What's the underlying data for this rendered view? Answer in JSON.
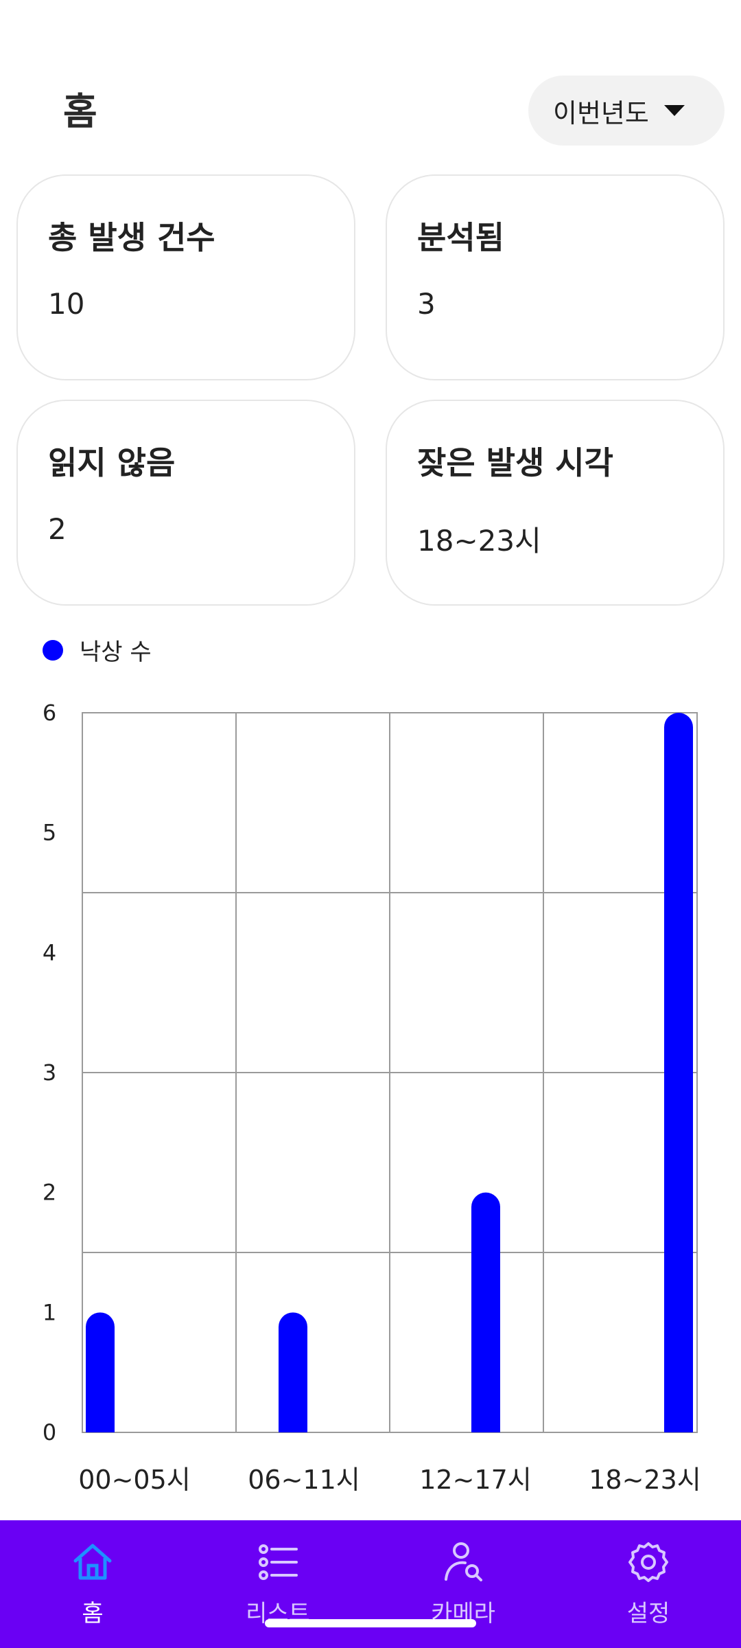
{
  "header": {
    "title": "홈",
    "period": "이번년도"
  },
  "cards": [
    {
      "title": "총 발생 건수",
      "value": "10"
    },
    {
      "title": "분석됨",
      "value": "3"
    },
    {
      "title": "읽지 않음",
      "value": "2"
    },
    {
      "title": "잦은 발생 시각",
      "value": "18~23시"
    }
  ],
  "legend": {
    "label": "낙상 수",
    "color": "#0000ff"
  },
  "chart_data": {
    "type": "bar",
    "categories": [
      "00~05시",
      "06~11시",
      "12~17시",
      "18~23시"
    ],
    "series": [
      {
        "name": "낙상 수",
        "values": [
          1,
          1,
          2,
          6
        ]
      }
    ],
    "ylim": [
      0,
      6
    ],
    "y_ticks": [
      0,
      1,
      2,
      3,
      4,
      5,
      6
    ],
    "grid": true,
    "legend_position": "top-left",
    "bar_color": "#0000ff"
  },
  "nav": {
    "background": "#6a00f4",
    "items": [
      {
        "label": "홈",
        "icon": "home-icon",
        "active": true
      },
      {
        "label": "리스트",
        "icon": "list-icon",
        "active": false
      },
      {
        "label": "카메라",
        "icon": "camera-person-icon",
        "active": false
      },
      {
        "label": "설정",
        "icon": "gear-icon",
        "active": false
      }
    ]
  }
}
